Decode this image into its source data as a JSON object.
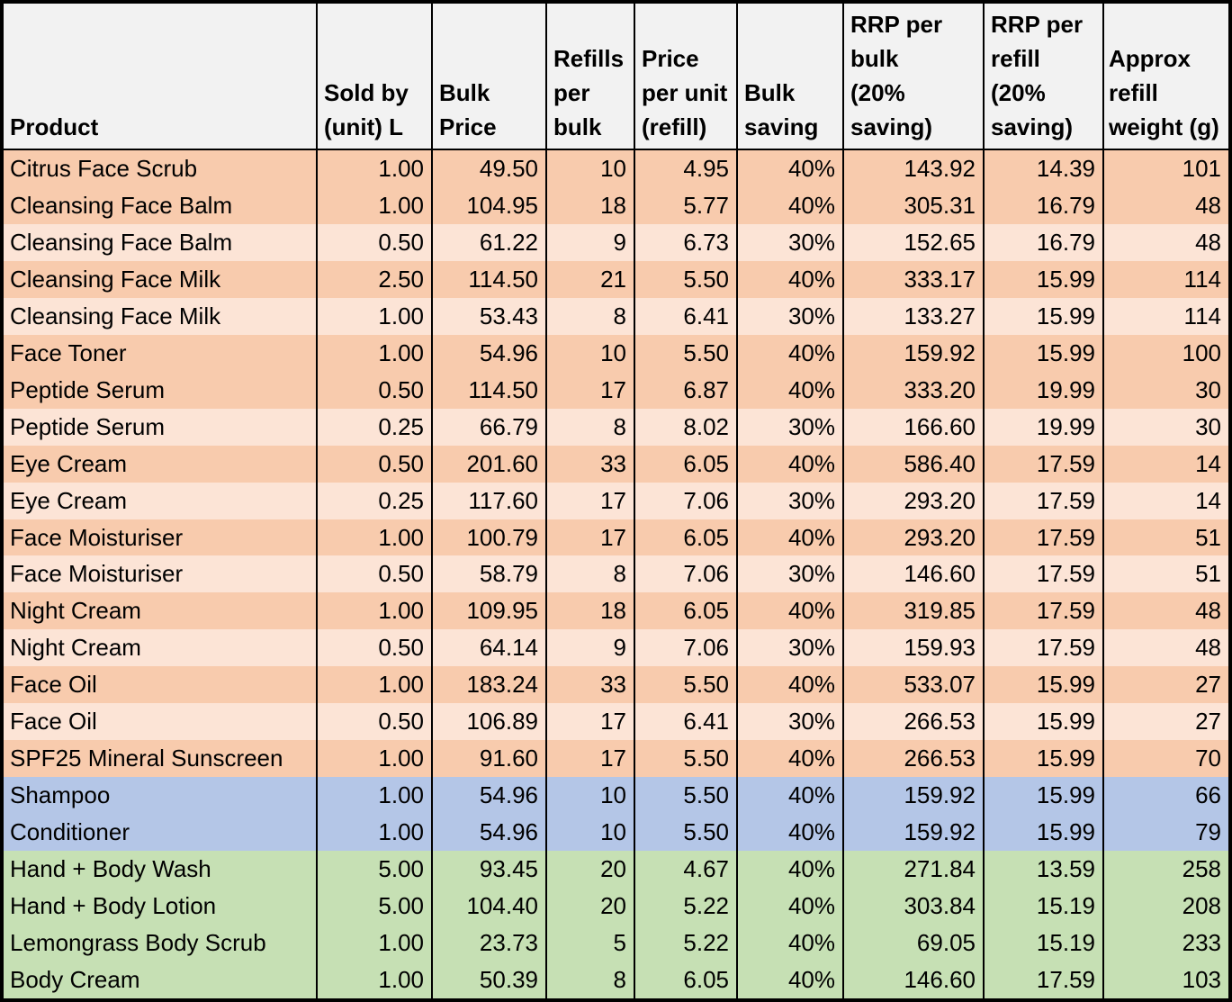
{
  "chart_data": {
    "type": "table",
    "columns": [
      "Product",
      "Sold by (unit) L",
      "Bulk Price",
      "Refills per bulk",
      "Price per unit (refill)",
      "Bulk saving",
      "RRP per bulk (20% saving)",
      "RRP per refill (20% saving)",
      "Approx refill weight (g)"
    ],
    "rows": [
      {
        "band": "orange_dark",
        "cells": [
          "Citrus Face Scrub",
          "1.00",
          "49.50",
          "10",
          "4.95",
          "40%",
          "143.92",
          "14.39",
          "101"
        ]
      },
      {
        "band": "orange_dark",
        "cells": [
          "Cleansing Face Balm",
          "1.00",
          "104.95",
          "18",
          "5.77",
          "40%",
          "305.31",
          "16.79",
          "48"
        ]
      },
      {
        "band": "orange_light",
        "cells": [
          "Cleansing Face Balm",
          "0.50",
          "61.22",
          "9",
          "6.73",
          "30%",
          "152.65",
          "16.79",
          "48"
        ]
      },
      {
        "band": "orange_dark",
        "cells": [
          "Cleansing Face Milk",
          "2.50",
          "114.50",
          "21",
          "5.50",
          "40%",
          "333.17",
          "15.99",
          "114"
        ]
      },
      {
        "band": "orange_light",
        "cells": [
          "Cleansing Face Milk",
          "1.00",
          "53.43",
          "8",
          "6.41",
          "30%",
          "133.27",
          "15.99",
          "114"
        ]
      },
      {
        "band": "orange_dark",
        "cells": [
          "Face Toner",
          "1.00",
          "54.96",
          "10",
          "5.50",
          "40%",
          "159.92",
          "15.99",
          "100"
        ]
      },
      {
        "band": "orange_dark",
        "cells": [
          "Peptide Serum",
          "0.50",
          "114.50",
          "17",
          "6.87",
          "40%",
          "333.20",
          "19.99",
          "30"
        ]
      },
      {
        "band": "orange_light",
        "cells": [
          "Peptide Serum",
          "0.25",
          "66.79",
          "8",
          "8.02",
          "30%",
          "166.60",
          "19.99",
          "30"
        ]
      },
      {
        "band": "orange_dark",
        "cells": [
          "Eye Cream",
          "0.50",
          "201.60",
          "33",
          "6.05",
          "40%",
          "586.40",
          "17.59",
          "14"
        ]
      },
      {
        "band": "orange_light",
        "cells": [
          "Eye Cream",
          "0.25",
          "117.60",
          "17",
          "7.06",
          "30%",
          "293.20",
          "17.59",
          "14"
        ]
      },
      {
        "band": "orange_dark",
        "cells": [
          "Face Moisturiser",
          "1.00",
          "100.79",
          "17",
          "6.05",
          "40%",
          "293.20",
          "17.59",
          "51"
        ]
      },
      {
        "band": "orange_light",
        "cells": [
          "Face Moisturiser",
          "0.50",
          "58.79",
          "8",
          "7.06",
          "30%",
          "146.60",
          "17.59",
          "51"
        ]
      },
      {
        "band": "orange_dark",
        "cells": [
          "Night Cream",
          "1.00",
          "109.95",
          "18",
          "6.05",
          "40%",
          "319.85",
          "17.59",
          "48"
        ]
      },
      {
        "band": "orange_light",
        "cells": [
          "Night Cream",
          "0.50",
          "64.14",
          "9",
          "7.06",
          "30%",
          "159.93",
          "17.59",
          "48"
        ]
      },
      {
        "band": "orange_dark",
        "cells": [
          "Face Oil",
          "1.00",
          "183.24",
          "33",
          "5.50",
          "40%",
          "533.07",
          "15.99",
          "27"
        ]
      },
      {
        "band": "orange_light",
        "cells": [
          "Face Oil",
          "0.50",
          "106.89",
          "17",
          "6.41",
          "30%",
          "266.53",
          "15.99",
          "27"
        ]
      },
      {
        "band": "orange_dark",
        "cells": [
          "SPF25 Mineral Sunscreen",
          "1.00",
          "91.60",
          "17",
          "5.50",
          "40%",
          "266.53",
          "15.99",
          "70"
        ]
      },
      {
        "band": "blue",
        "cells": [
          "Shampoo",
          "1.00",
          "54.96",
          "10",
          "5.50",
          "40%",
          "159.92",
          "15.99",
          "66"
        ]
      },
      {
        "band": "blue",
        "cells": [
          "Conditioner",
          "1.00",
          "54.96",
          "10",
          "5.50",
          "40%",
          "159.92",
          "15.99",
          "79"
        ]
      },
      {
        "band": "green",
        "cells": [
          "Hand + Body Wash",
          "5.00",
          "93.45",
          "20",
          "4.67",
          "40%",
          "271.84",
          "13.59",
          "258"
        ]
      },
      {
        "band": "green",
        "cells": [
          "Hand + Body Lotion",
          "5.00",
          "104.40",
          "20",
          "5.22",
          "40%",
          "303.84",
          "15.19",
          "208"
        ]
      },
      {
        "band": "green",
        "cells": [
          "Lemongrass Body Scrub",
          "1.00",
          "23.73",
          "5",
          "5.22",
          "40%",
          "69.05",
          "15.19",
          "233"
        ]
      },
      {
        "band": "green",
        "cells": [
          "Body Cream",
          "1.00",
          "50.39",
          "8",
          "6.05",
          "40%",
          "146.60",
          "17.59",
          "103"
        ]
      }
    ],
    "band_colors": {
      "orange_dark": "#F8CBAD",
      "orange_light": "#FCE4D6",
      "blue": "#B4C6E7",
      "green": "#C6E0B4",
      "header_bg": "#F2F2F2",
      "border": "#000000"
    },
    "layout": {
      "grid": "black cell borders, thick outer frame",
      "header_align": "bottom-left",
      "number_align": "right"
    }
  }
}
